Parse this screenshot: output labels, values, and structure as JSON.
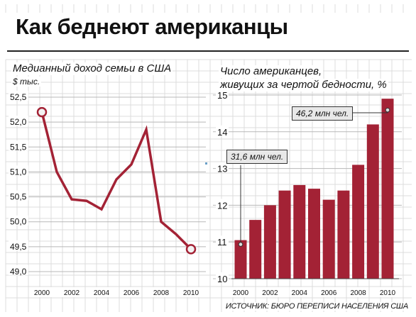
{
  "title": "Как беднеют американцы",
  "left_chart": {
    "title": "Медианный доход семьи в США",
    "unit": "$ тыс."
  },
  "right_chart": {
    "title_line1": "Число американцев,",
    "title_line2": "живущих за чертой бедности, %",
    "callout_low": "31,6 млн чел.",
    "callout_high": "46,2 млн чел."
  },
  "source": "ИСТОЧНИК: БЮРО ПЕРЕПИСИ НАСЕЛЕНИЯ США",
  "colors": {
    "series": "#a32235",
    "grid": "#c9c9c9",
    "text": "#111111"
  },
  "chart_data": [
    {
      "type": "line",
      "title": "Медианный доход семьи в США",
      "ylabel": "$ тыс.",
      "x": [
        2000,
        2001,
        2002,
        2003,
        2004,
        2005,
        2006,
        2007,
        2008,
        2009,
        2010
      ],
      "xticks": [
        2000,
        2002,
        2004,
        2006,
        2008,
        2010
      ],
      "yticks": [
        "49,0",
        "49,5",
        "50,0",
        "50,5",
        "51,0",
        "51,5",
        "52,0",
        "52,5"
      ],
      "series": [
        {
          "values": [
            52.2,
            51.0,
            50.45,
            50.42,
            50.25,
            50.85,
            51.15,
            51.85,
            50.0,
            49.75,
            49.45
          ]
        }
      ],
      "ylim": [
        49.0,
        52.5
      ],
      "xlim": [
        2000,
        2010
      ],
      "grid": true,
      "markers": [
        2000,
        2010
      ]
    },
    {
      "type": "bar",
      "title": "Число американцев, живущих за чертой бедности, %",
      "categories": [
        2000,
        2001,
        2002,
        2003,
        2004,
        2005,
        2006,
        2007,
        2008,
        2009,
        2010
      ],
      "xticks": [
        2000,
        2002,
        2004,
        2006,
        2008,
        2010
      ],
      "yticks": [
        "10",
        "11",
        "12",
        "13",
        "14",
        "15"
      ],
      "values": [
        11.05,
        11.6,
        12.0,
        12.4,
        12.55,
        12.45,
        12.15,
        12.4,
        13.1,
        14.2,
        14.9
      ],
      "ylim": [
        10,
        15
      ],
      "grid": true,
      "annotations": [
        {
          "x": 2000,
          "text": "31,6 млн чел."
        },
        {
          "x": 2010,
          "text": "46,2 млн чел."
        }
      ]
    }
  ]
}
